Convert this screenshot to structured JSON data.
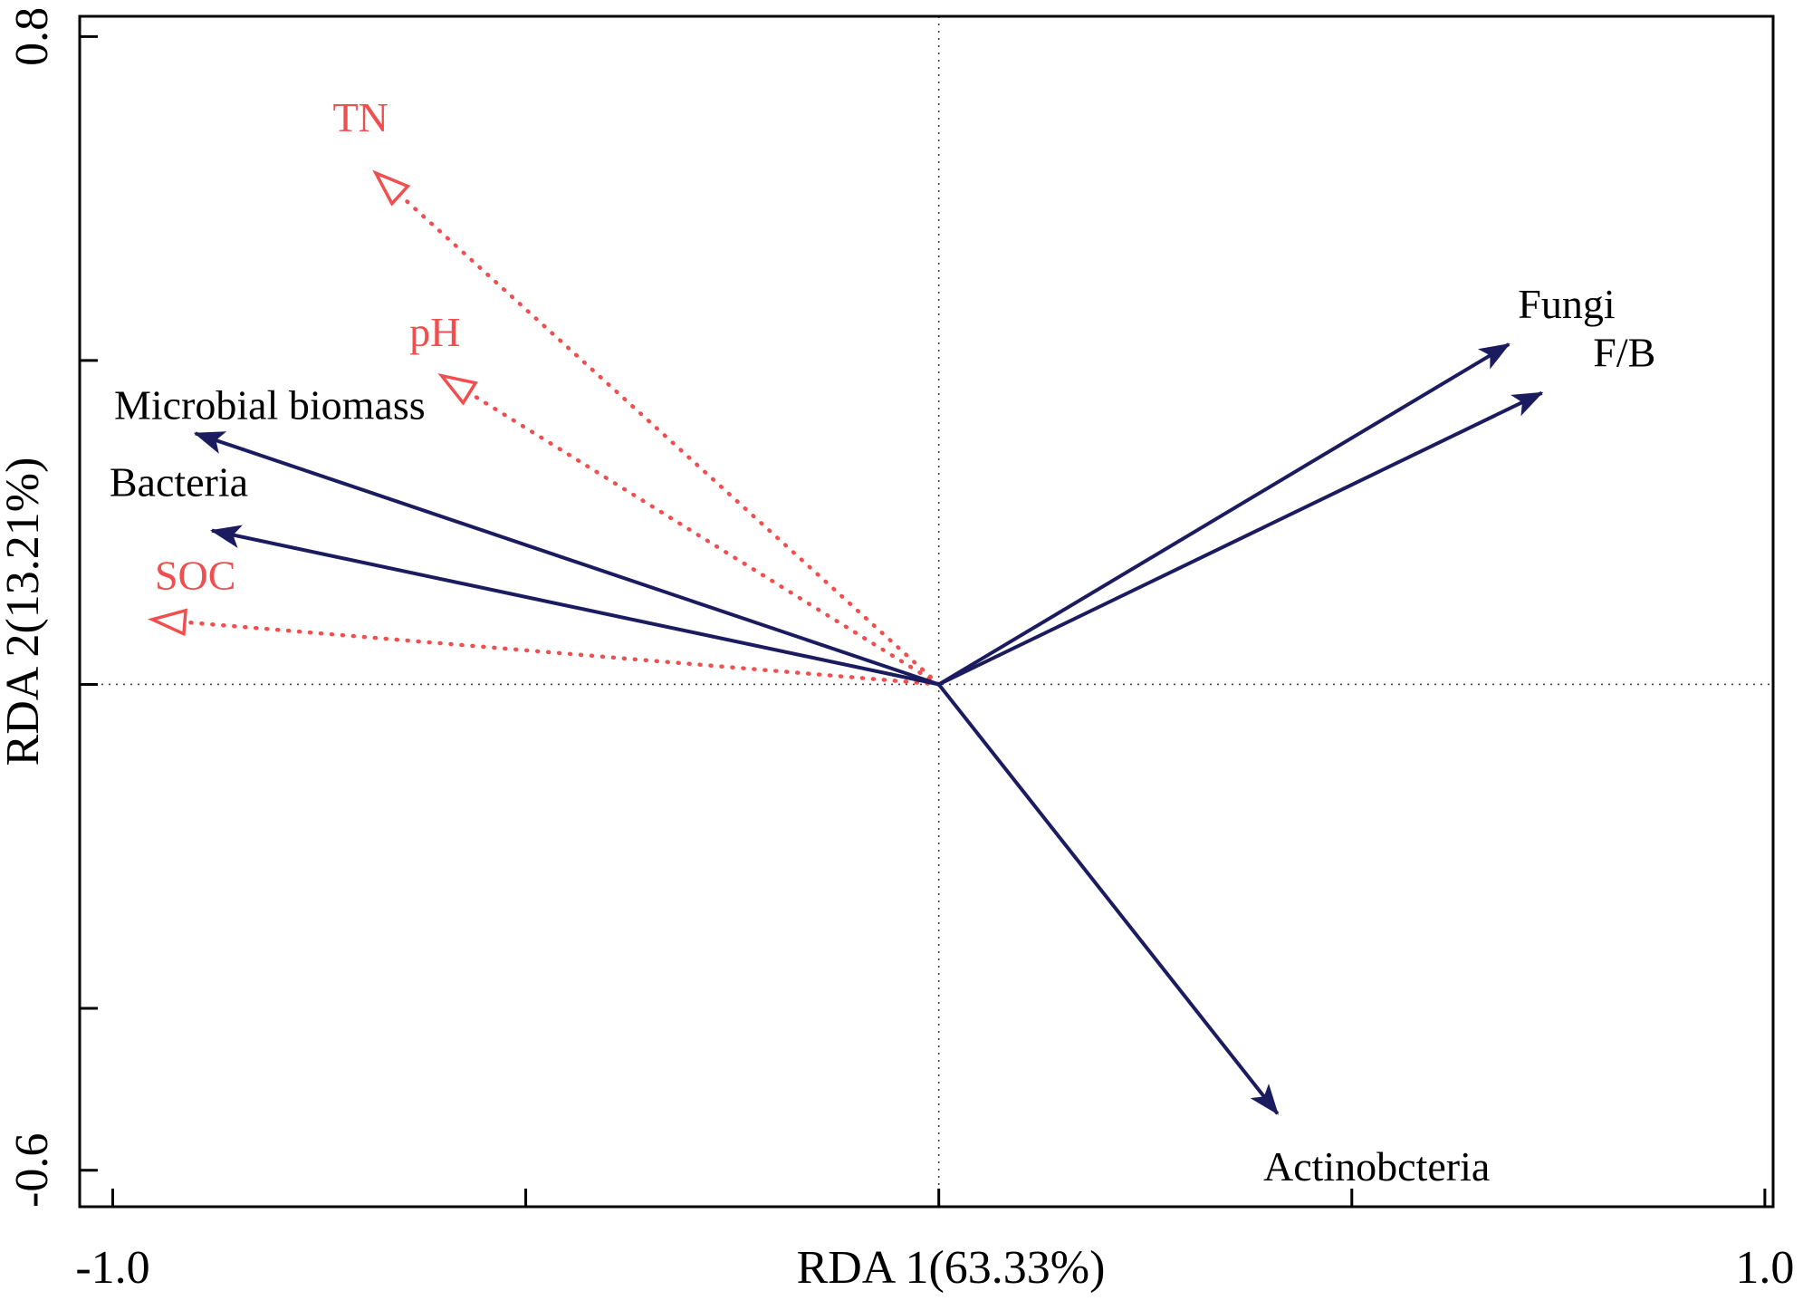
{
  "chart_data": {
    "type": "scatter",
    "subtype": "rda_ordination_biplot",
    "title": "",
    "xlabel": "RDA 1(63.33%)",
    "ylabel": "RDA 2(13.21%)",
    "xlim": [
      -1.04,
      1.01
    ],
    "ylim": [
      -0.645,
      0.825
    ],
    "grid": false,
    "legend": null,
    "origin": [
      0,
      0
    ],
    "zero_lines": {
      "style": "dotted",
      "color": "#444444"
    },
    "x_ticks": [
      {
        "value": -1.0,
        "label": "-1.0"
      },
      {
        "value": -0.5,
        "label": ""
      },
      {
        "value": 0.0,
        "label": ""
      },
      {
        "value": 0.5,
        "label": ""
      },
      {
        "value": 1.0,
        "label": "1.0"
      }
    ],
    "y_ticks": [
      {
        "value": 0.8,
        "label": "0.8"
      },
      {
        "value": 0.4,
        "label": ""
      },
      {
        "value": 0.0,
        "label": ""
      },
      {
        "value": -0.4,
        "label": ""
      },
      {
        "value": -0.6,
        "label": "-0.6"
      }
    ],
    "response_arrows": [
      {
        "label": "Microbial biomass",
        "x": -0.9,
        "y": 0.31,
        "label_x": -0.81,
        "label_y": 0.345
      },
      {
        "label": "Bacteria",
        "x": -0.88,
        "y": 0.19,
        "label_x": -0.92,
        "label_y": 0.25
      },
      {
        "label": "Fungi",
        "x": 0.69,
        "y": 0.42,
        "label_x": 0.76,
        "label_y": 0.47
      },
      {
        "label": "F/B",
        "x": 0.73,
        "y": 0.36,
        "label_x": 0.83,
        "label_y": 0.41
      },
      {
        "label": "Actinobcteria",
        "x": 0.41,
        "y": -0.53,
        "label_x": 0.53,
        "label_y": -0.595
      }
    ],
    "environment_arrows": [
      {
        "label": "TN",
        "x": -0.68,
        "y": 0.63,
        "label_x": -0.7,
        "label_y": 0.7
      },
      {
        "label": "pH",
        "x": -0.6,
        "y": 0.38,
        "label_x": -0.61,
        "label_y": 0.435
      },
      {
        "label": "SOC",
        "x": -0.95,
        "y": 0.08,
        "label_x": -0.9,
        "label_y": 0.135
      }
    ],
    "colors": {
      "response": "#1b1b60",
      "environment": "#f04f4f",
      "axis": "#000000",
      "response_label": "#000000",
      "environment_label": "#f04f4f"
    }
  }
}
